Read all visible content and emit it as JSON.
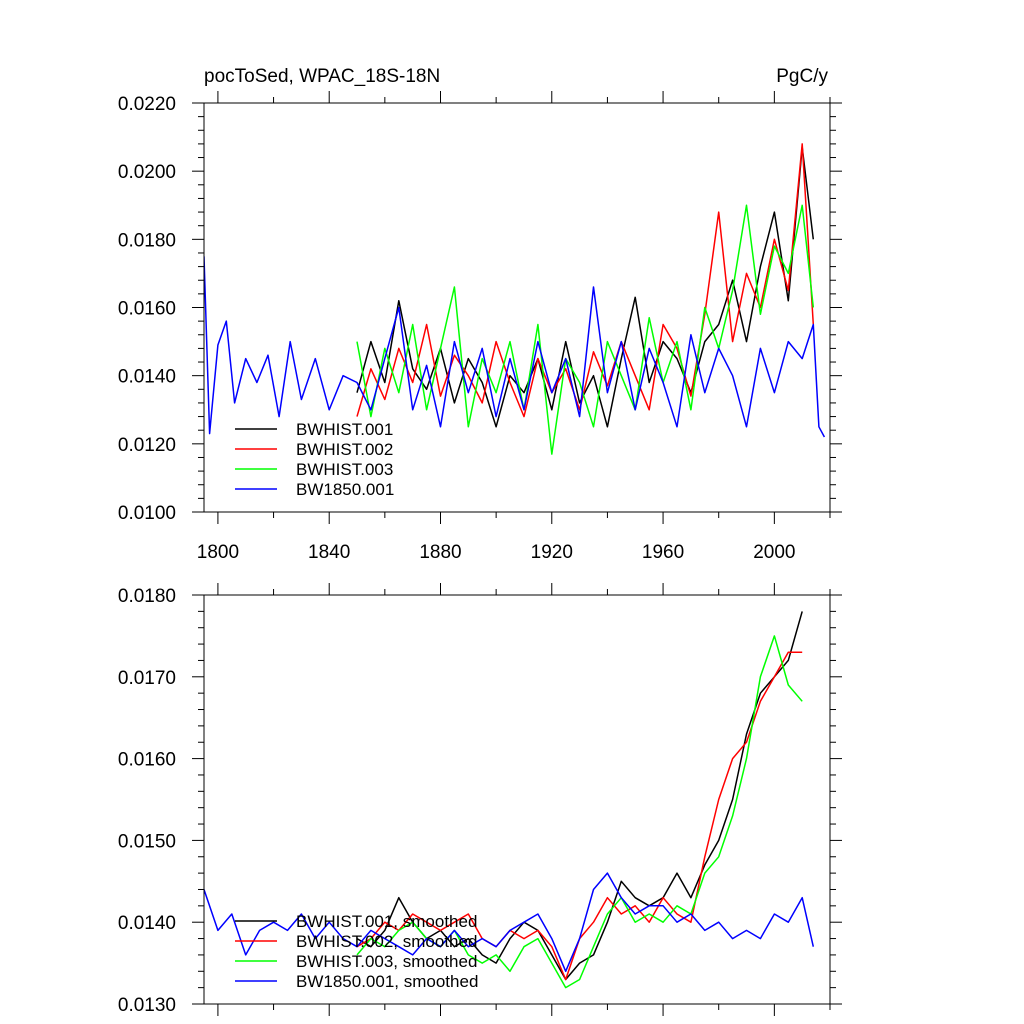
{
  "chart_data": [
    {
      "type": "line",
      "title_left": "pocToSed, WPAC_18S-18N",
      "title_right": "PgC/y",
      "xlim": [
        1795,
        2020
      ],
      "ylim": [
        0.01,
        0.022
      ],
      "xticks": [
        1800,
        1840,
        1880,
        1920,
        1960,
        2000
      ],
      "xtick_labels": [
        "1800",
        "1840",
        "1880",
        "1920",
        "1960",
        "2000"
      ],
      "yticks": [
        0.01,
        0.012,
        0.014,
        0.016,
        0.018,
        0.02,
        0.022
      ],
      "ytick_labels": [
        "0.0100",
        "0.0120",
        "0.0140",
        "0.0160",
        "0.0180",
        "0.0200",
        "0.0220"
      ],
      "grid": false,
      "legend_position": "bottom-left",
      "series": [
        {
          "name": "BWHIST.001",
          "color": "#000000",
          "x": [
            1850,
            1855,
            1860,
            1865,
            1870,
            1875,
            1880,
            1885,
            1890,
            1895,
            1900,
            1905,
            1910,
            1915,
            1920,
            1925,
            1930,
            1935,
            1940,
            1945,
            1950,
            1955,
            1960,
            1965,
            1970,
            1975,
            1980,
            1985,
            1990,
            1995,
            2000,
            2005,
            2010,
            2014
          ],
          "y": [
            0.0135,
            0.015,
            0.0138,
            0.0162,
            0.0142,
            0.0136,
            0.0148,
            0.0132,
            0.0145,
            0.0138,
            0.0125,
            0.014,
            0.0135,
            0.0145,
            0.013,
            0.015,
            0.0132,
            0.014,
            0.0125,
            0.0145,
            0.0163,
            0.0138,
            0.015,
            0.0145,
            0.0135,
            0.015,
            0.0155,
            0.0168,
            0.015,
            0.0172,
            0.0188,
            0.0162,
            0.0207,
            0.018
          ]
        },
        {
          "name": "BWHIST.002",
          "color": "#ff0000",
          "x": [
            1850,
            1855,
            1860,
            1865,
            1870,
            1875,
            1880,
            1885,
            1890,
            1895,
            1900,
            1905,
            1910,
            1915,
            1920,
            1925,
            1930,
            1935,
            1940,
            1945,
            1950,
            1955,
            1960,
            1965,
            1970,
            1975,
            1980,
            1985,
            1990,
            1995,
            2000,
            2005,
            2010,
            2014
          ],
          "y": [
            0.0128,
            0.0142,
            0.0133,
            0.0148,
            0.0138,
            0.0155,
            0.0134,
            0.0146,
            0.014,
            0.0132,
            0.015,
            0.0138,
            0.0128,
            0.0145,
            0.0135,
            0.0142,
            0.013,
            0.0147,
            0.0137,
            0.015,
            0.014,
            0.013,
            0.0155,
            0.0148,
            0.0134,
            0.0158,
            0.0188,
            0.015,
            0.017,
            0.016,
            0.018,
            0.0165,
            0.0208,
            0.0155
          ]
        },
        {
          "name": "BWHIST.003",
          "color": "#00ff00",
          "x": [
            1850,
            1855,
            1860,
            1865,
            1870,
            1875,
            1880,
            1885,
            1890,
            1895,
            1900,
            1905,
            1910,
            1915,
            1920,
            1925,
            1930,
            1935,
            1940,
            1945,
            1950,
            1955,
            1960,
            1965,
            1970,
            1975,
            1980,
            1985,
            1990,
            1995,
            2000,
            2005,
            2010,
            2014
          ],
          "y": [
            0.015,
            0.0128,
            0.0148,
            0.0135,
            0.0155,
            0.013,
            0.0148,
            0.0166,
            0.0125,
            0.0145,
            0.0135,
            0.015,
            0.013,
            0.0155,
            0.0117,
            0.0145,
            0.0138,
            0.0125,
            0.015,
            0.014,
            0.013,
            0.0157,
            0.0138,
            0.015,
            0.013,
            0.016,
            0.0148,
            0.0165,
            0.019,
            0.0158,
            0.0178,
            0.017,
            0.019,
            0.016
          ]
        },
        {
          "name": "BW1850.001",
          "color": "#0000ff",
          "x": [
            1795,
            1797,
            1800,
            1803,
            1806,
            1810,
            1814,
            1818,
            1822,
            1826,
            1830,
            1835,
            1840,
            1845,
            1850,
            1855,
            1860,
            1865,
            1870,
            1875,
            1880,
            1885,
            1890,
            1895,
            1900,
            1905,
            1910,
            1915,
            1920,
            1925,
            1930,
            1935,
            1940,
            1945,
            1950,
            1955,
            1960,
            1965,
            1970,
            1975,
            1980,
            1985,
            1990,
            1995,
            2000,
            2005,
            2010,
            2014,
            2016,
            2018
          ],
          "y": [
            0.0175,
            0.0123,
            0.0149,
            0.0156,
            0.0132,
            0.0145,
            0.0138,
            0.0146,
            0.0128,
            0.015,
            0.0133,
            0.0145,
            0.013,
            0.014,
            0.0138,
            0.013,
            0.0145,
            0.016,
            0.013,
            0.0143,
            0.0125,
            0.015,
            0.0135,
            0.0148,
            0.0128,
            0.0145,
            0.013,
            0.015,
            0.0135,
            0.0145,
            0.0128,
            0.0166,
            0.0135,
            0.015,
            0.013,
            0.0148,
            0.0138,
            0.0125,
            0.0152,
            0.0135,
            0.0148,
            0.014,
            0.0125,
            0.0148,
            0.0135,
            0.015,
            0.0145,
            0.0155,
            0.0125,
            0.0122
          ]
        }
      ]
    },
    {
      "type": "line",
      "xlim": [
        1795,
        2020
      ],
      "ylim": [
        0.013,
        0.018
      ],
      "xticks": [
        1800,
        1840,
        1880,
        1920,
        1960,
        2000
      ],
      "yticks": [
        0.013,
        0.014,
        0.015,
        0.016,
        0.017,
        0.018
      ],
      "ytick_labels": [
        "0.0130",
        "0.0140",
        "0.0150",
        "0.0160",
        "0.0170",
        "0.0180"
      ],
      "grid": false,
      "legend_position": "bottom-left",
      "series": [
        {
          "name": "BWHIST.001, smoothed",
          "color": "#000000",
          "x": [
            1850,
            1855,
            1860,
            1865,
            1870,
            1875,
            1880,
            1885,
            1890,
            1895,
            1900,
            1905,
            1910,
            1915,
            1920,
            1925,
            1930,
            1935,
            1940,
            1945,
            1950,
            1955,
            1960,
            1965,
            1970,
            1975,
            1980,
            1985,
            1990,
            1995,
            2000,
            2005,
            2010
          ],
          "y": [
            0.0138,
            0.0137,
            0.0139,
            0.0143,
            0.014,
            0.0138,
            0.0139,
            0.0137,
            0.0138,
            0.0136,
            0.0135,
            0.0138,
            0.014,
            0.0139,
            0.0136,
            0.0133,
            0.0135,
            0.0136,
            0.014,
            0.0145,
            0.0143,
            0.0142,
            0.0143,
            0.0146,
            0.0143,
            0.0147,
            0.015,
            0.0155,
            0.0163,
            0.0168,
            0.017,
            0.0172,
            0.0178
          ]
        },
        {
          "name": "BWHIST.002, smoothed",
          "color": "#ff0000",
          "x": [
            1850,
            1855,
            1860,
            1865,
            1870,
            1875,
            1880,
            1885,
            1890,
            1895,
            1900,
            1905,
            1910,
            1915,
            1920,
            1925,
            1930,
            1935,
            1940,
            1945,
            1950,
            1955,
            1960,
            1965,
            1970,
            1975,
            1980,
            1985,
            1990,
            1995,
            2000,
            2005,
            2010
          ],
          "y": [
            0.0137,
            0.0138,
            0.014,
            0.0139,
            0.0141,
            0.014,
            0.0139,
            0.014,
            0.0141,
            0.0138,
            0.0137,
            0.0139,
            0.0138,
            0.0139,
            0.0137,
            0.0133,
            0.0138,
            0.014,
            0.0143,
            0.0141,
            0.0142,
            0.014,
            0.0143,
            0.0141,
            0.014,
            0.0148,
            0.0155,
            0.016,
            0.0162,
            0.0167,
            0.017,
            0.0173,
            0.0173
          ]
        },
        {
          "name": "BWHIST.003, smoothed",
          "color": "#00ff00",
          "x": [
            1850,
            1855,
            1860,
            1865,
            1870,
            1875,
            1880,
            1885,
            1890,
            1895,
            1900,
            1905,
            1910,
            1915,
            1920,
            1925,
            1930,
            1935,
            1940,
            1945,
            1950,
            1955,
            1960,
            1965,
            1970,
            1975,
            1980,
            1985,
            1990,
            1995,
            2000,
            2005,
            2010
          ],
          "y": [
            0.0136,
            0.0138,
            0.0137,
            0.0139,
            0.014,
            0.0138,
            0.0137,
            0.0139,
            0.0136,
            0.0135,
            0.0136,
            0.0134,
            0.0137,
            0.0138,
            0.0135,
            0.0132,
            0.0133,
            0.0137,
            0.0141,
            0.0143,
            0.014,
            0.0141,
            0.014,
            0.0142,
            0.0141,
            0.0146,
            0.0148,
            0.0153,
            0.016,
            0.017,
            0.0175,
            0.0169,
            0.0167
          ]
        },
        {
          "name": "BW1850.001, smoothed",
          "color": "#0000ff",
          "x": [
            1795,
            1800,
            1805,
            1810,
            1815,
            1820,
            1825,
            1830,
            1835,
            1840,
            1845,
            1850,
            1855,
            1860,
            1865,
            1870,
            1875,
            1880,
            1885,
            1890,
            1895,
            1900,
            1905,
            1910,
            1915,
            1920,
            1925,
            1930,
            1935,
            1940,
            1945,
            1950,
            1955,
            1960,
            1965,
            1970,
            1975,
            1980,
            1985,
            1990,
            1995,
            2000,
            2005,
            2010,
            2014
          ],
          "y": [
            0.0144,
            0.0139,
            0.0141,
            0.0136,
            0.0139,
            0.014,
            0.0139,
            0.0141,
            0.0138,
            0.014,
            0.0138,
            0.0137,
            0.0139,
            0.0138,
            0.0137,
            0.0136,
            0.0138,
            0.0137,
            0.0139,
            0.0137,
            0.0138,
            0.0137,
            0.0139,
            0.014,
            0.0141,
            0.0138,
            0.0134,
            0.0138,
            0.0144,
            0.0146,
            0.0143,
            0.0141,
            0.0142,
            0.0142,
            0.014,
            0.0141,
            0.0139,
            0.014,
            0.0138,
            0.0139,
            0.0138,
            0.0141,
            0.014,
            0.0143,
            0.0137
          ]
        }
      ]
    }
  ]
}
